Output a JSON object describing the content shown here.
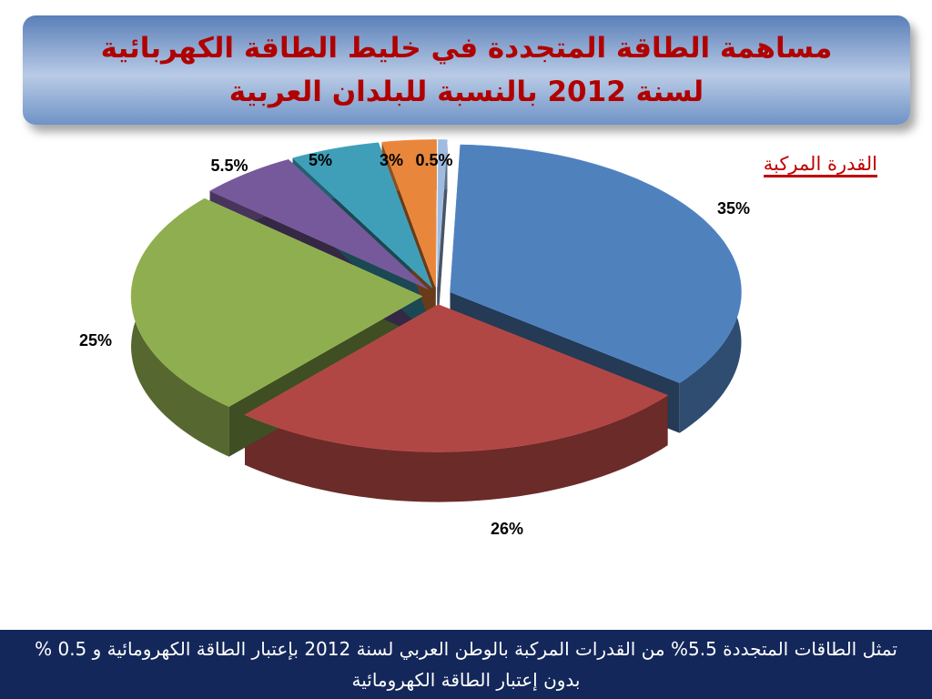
{
  "chart_data": {
    "type": "pie",
    "title": "مساهمة الطاقة المتجددة في خليط الطاقة الكهربائية  لسنة 2012 بالنسبة للبلدان العربية",
    "subtitle": "القدرة المركبة",
    "values": [
      35,
      26,
      25,
      5.5,
      5,
      3,
      0.5
    ],
    "value_labels": [
      "35%",
      "26%",
      "25%",
      "5.5%",
      "5%",
      "3%",
      "0.5%"
    ],
    "colors": [
      "#4f81bd",
      "#b04744",
      "#8fae4f",
      "#76599a",
      "#3f9fb8",
      "#e8863c",
      "#9fbbe0"
    ]
  },
  "footer": {
    "text": "تمثل الطاقات المتجددة 5.5% من القدرات المركبة بالوطن العربي لسنة 2012 بإعتبار الطاقة الكهرومائية و 0.5 % بدون إعتبار الطاقة الكهرومائية"
  }
}
